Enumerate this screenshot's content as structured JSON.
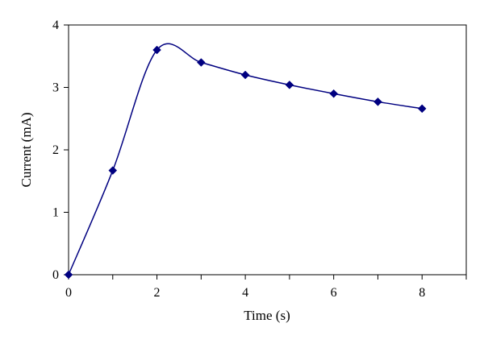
{
  "chart_data": {
    "type": "line",
    "title": "",
    "xlabel": "Time (s)",
    "ylabel": "Current (mA)",
    "xlim": [
      0,
      9
    ],
    "ylim": [
      0,
      4
    ],
    "x_ticks": [
      0,
      2,
      4,
      6,
      8
    ],
    "x_tick_labels": [
      "0",
      "2",
      "4",
      "6",
      "8"
    ],
    "x_minor_ticks": [
      1,
      3,
      5,
      7,
      9
    ],
    "y_ticks": [
      0,
      1,
      2,
      3,
      4
    ],
    "y_tick_labels": [
      "0",
      "1",
      "2",
      "3",
      "4"
    ],
    "grid": false,
    "legend": "none",
    "series": [
      {
        "marker": "diamond",
        "color": "#000080",
        "x": [
          0,
          1,
          2,
          3,
          4,
          5,
          6,
          7,
          8
        ],
        "y": [
          0,
          1.67,
          3.6,
          3.4,
          3.2,
          3.04,
          2.9,
          2.77,
          2.66
        ]
      }
    ]
  }
}
